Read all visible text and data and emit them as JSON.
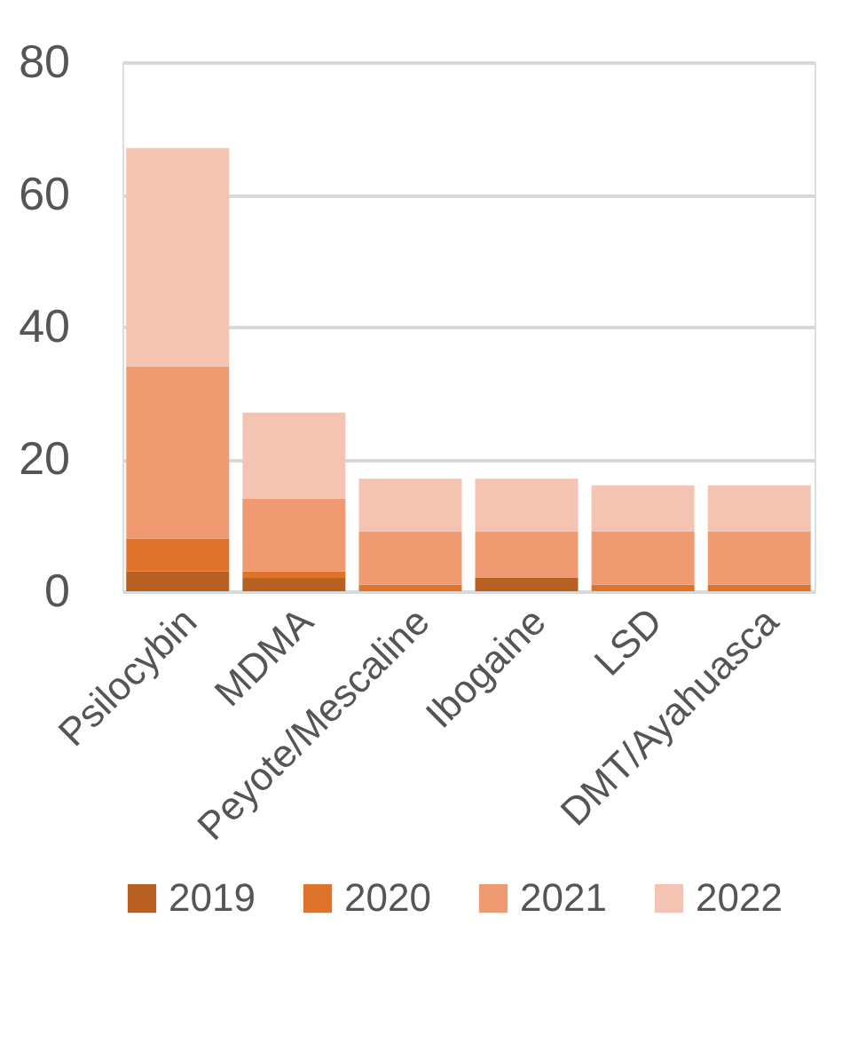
{
  "chart_data": {
    "type": "bar",
    "stacked": true,
    "categories": [
      "Psilocybin",
      "MDMA",
      "Peyote/Mescaline",
      "Ibogaine",
      "LSD",
      "DMT/Ayahuasca"
    ],
    "series": [
      {
        "name": "2019",
        "color": "#b85f22",
        "values": [
          3,
          2,
          0,
          2,
          0,
          0
        ]
      },
      {
        "name": "2020",
        "color": "#de732c",
        "values": [
          5,
          1,
          1,
          0,
          1,
          1
        ]
      },
      {
        "name": "2021",
        "color": "#f09a71",
        "values": [
          26,
          11,
          8,
          7,
          8,
          8
        ]
      },
      {
        "name": "2022",
        "color": "#f5c3b1",
        "values": [
          33,
          13,
          8,
          8,
          7,
          7
        ]
      }
    ],
    "ylim": [
      0,
      80
    ],
    "yticks": [
      0,
      20,
      40,
      60,
      80
    ],
    "grid": "y",
    "legend": "bottom"
  }
}
